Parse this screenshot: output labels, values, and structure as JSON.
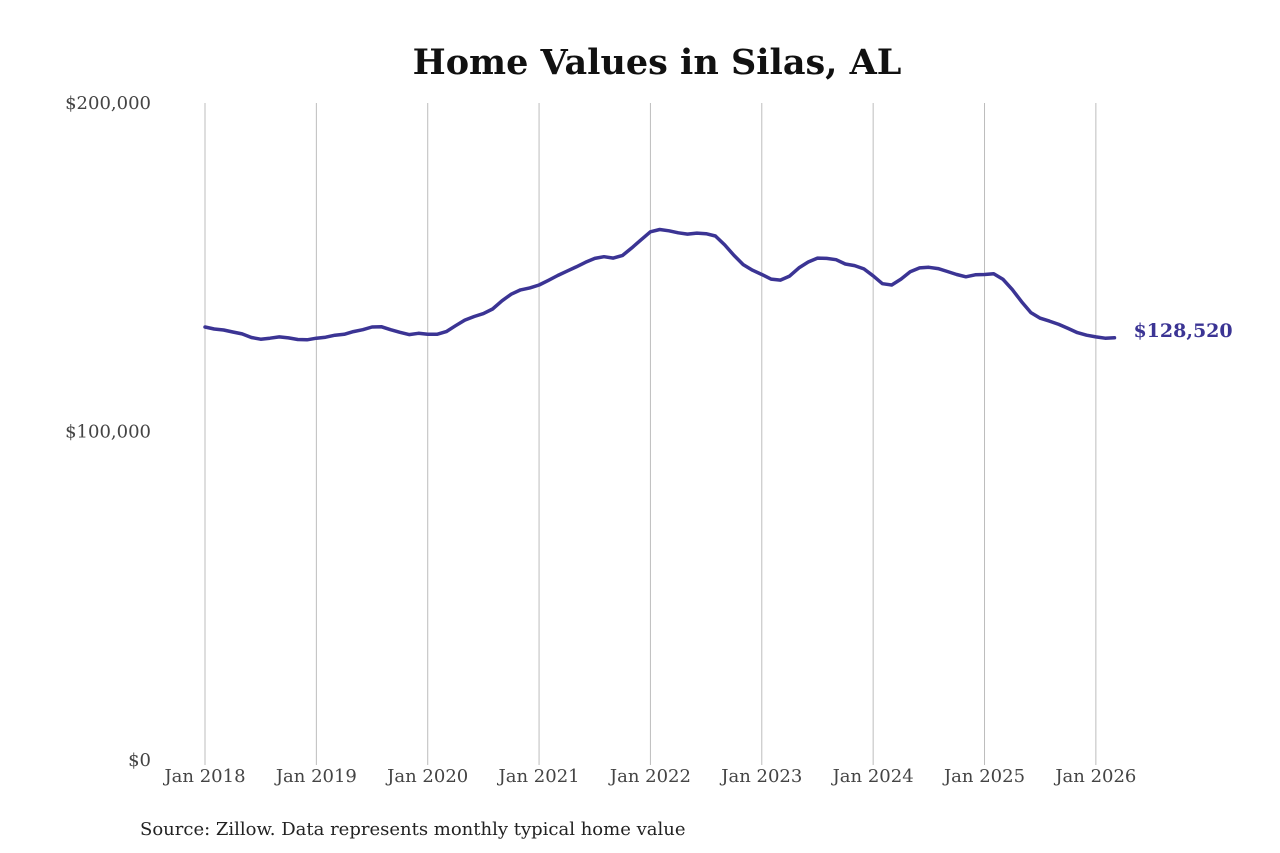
{
  "colors": {
    "line": "#3b3494",
    "grid": "#bdbdbd",
    "text": "#444444"
  },
  "chart_data": {
    "type": "line",
    "title": "Home Values in Silas, AL",
    "xlabel": "",
    "ylabel": "",
    "ylim": [
      0,
      200000
    ],
    "ytick_values": [
      0,
      100000,
      200000
    ],
    "ytick_labels": [
      "$0",
      "$100,000",
      "$200,000"
    ],
    "xlim": [
      2018.0,
      2026.1
    ],
    "xtick_values": [
      2018,
      2019,
      2020,
      2021,
      2022,
      2023,
      2024,
      2025,
      2026
    ],
    "xtick_labels": [
      "Jan 2018",
      "Jan 2019",
      "Jan 2020",
      "Jan 2021",
      "Jan 2022",
      "Jan 2023",
      "Jan 2024",
      "Jan 2025",
      "Jan 2026"
    ],
    "grid": "vertical",
    "legend": "none",
    "end_label": "$128,520",
    "series": [
      {
        "name": "Typical home value",
        "x": [
          2018.0,
          2018.083,
          2018.167,
          2018.25,
          2018.333,
          2018.417,
          2018.5,
          2018.583,
          2018.667,
          2018.75,
          2018.833,
          2018.917,
          2019.0,
          2019.083,
          2019.167,
          2019.25,
          2019.333,
          2019.417,
          2019.5,
          2019.583,
          2019.667,
          2019.75,
          2019.833,
          2019.917,
          2020.0,
          2020.083,
          2020.167,
          2020.25,
          2020.333,
          2020.417,
          2020.5,
          2020.583,
          2020.667,
          2020.75,
          2020.833,
          2020.917,
          2021.0,
          2021.083,
          2021.167,
          2021.25,
          2021.333,
          2021.417,
          2021.5,
          2021.583,
          2021.667,
          2021.75,
          2021.833,
          2021.917,
          2022.0,
          2022.083,
          2022.167,
          2022.25,
          2022.333,
          2022.417,
          2022.5,
          2022.583,
          2022.667,
          2022.75,
          2022.833,
          2022.917,
          2023.0,
          2023.083,
          2023.167,
          2023.25,
          2023.333,
          2023.417,
          2023.5,
          2023.583,
          2023.667,
          2023.75,
          2023.833,
          2023.917,
          2024.0,
          2024.083,
          2024.167,
          2024.25,
          2024.333,
          2024.417,
          2024.5,
          2024.583,
          2024.667,
          2024.75,
          2024.833,
          2024.917,
          2025.0,
          2025.083,
          2025.167,
          2025.25,
          2025.333,
          2025.417,
          2025.5,
          2025.583,
          2025.667,
          2025.75,
          2025.833,
          2025.917,
          2026.0,
          2026.083,
          2026.167
        ],
        "values": [
          131800,
          131200,
          130900,
          130300,
          129700,
          128600,
          128100,
          128400,
          128800,
          128500,
          128000,
          127900,
          128400,
          128700,
          129300,
          129600,
          130400,
          131000,
          131800,
          131900,
          131000,
          130200,
          129500,
          129900,
          129600,
          129600,
          130400,
          132200,
          133900,
          135000,
          135900,
          137300,
          139800,
          141800,
          143100,
          143700,
          144600,
          146000,
          147500,
          148800,
          150100,
          151500,
          152700,
          153200,
          152800,
          153600,
          155900,
          158400,
          160800,
          161500,
          161100,
          160500,
          160100,
          160400,
          160200,
          159500,
          156800,
          153600,
          150800,
          149100,
          147800,
          146400,
          146100,
          147300,
          149800,
          151600,
          152800,
          152700,
          152300,
          151000,
          150500,
          149500,
          147400,
          145000,
          144600,
          146400,
          148600,
          149800,
          150000,
          149600,
          148700,
          147800,
          147100,
          147700,
          147800,
          148000,
          146300,
          143200,
          139500,
          136200,
          134500,
          133600,
          132600,
          131400,
          130100,
          129300,
          128800,
          128400,
          128520
        ]
      }
    ]
  },
  "source_note": "Source: Zillow. Data represents monthly typical home value"
}
